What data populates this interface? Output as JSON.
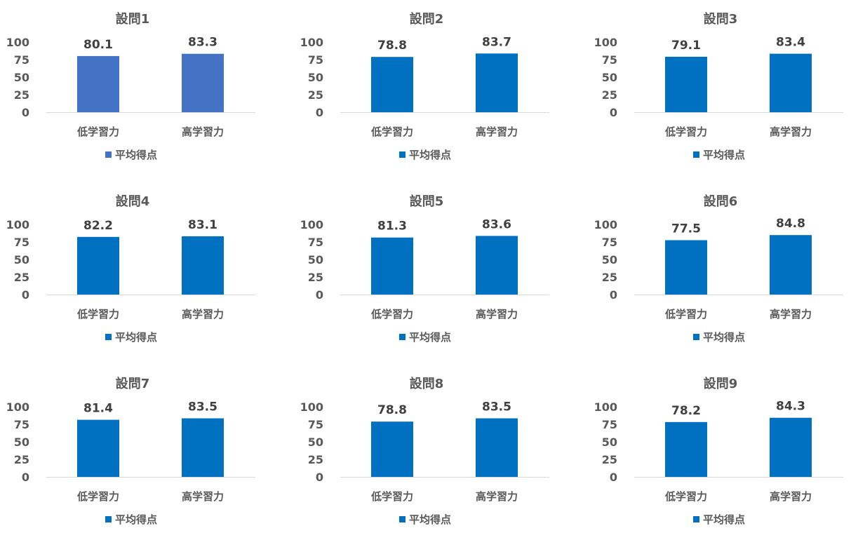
{
  "colors": {
    "first_chart_bar": "#4472C4",
    "bar": "#0070C0",
    "axis_line": "#D9D9D9",
    "text": "#595959",
    "data_label": "#404040"
  },
  "chart_data": [
    {
      "type": "bar",
      "title": "設問1",
      "categories": [
        "低学習力",
        "高学習力"
      ],
      "series": [
        {
          "name": "平均得点",
          "values": [
            80.1,
            83.3
          ]
        }
      ],
      "yticks": [
        "100",
        "75",
        "50",
        "25",
        "0"
      ],
      "ylim": [
        0,
        100
      ],
      "legend": "bottom",
      "data_labels": [
        "80.1",
        "83.3"
      ],
      "bar_color": "#4472C4"
    },
    {
      "type": "bar",
      "title": "設問2",
      "categories": [
        "低学習力",
        "高学習力"
      ],
      "series": [
        {
          "name": "平均得点",
          "values": [
            78.8,
            83.7
          ]
        }
      ],
      "yticks": [
        "100",
        "75",
        "50",
        "25",
        "0"
      ],
      "ylim": [
        0,
        100
      ],
      "legend": "bottom",
      "data_labels": [
        "78.8",
        "83.7"
      ],
      "bar_color": "#0070C0"
    },
    {
      "type": "bar",
      "title": "設問3",
      "categories": [
        "低学習力",
        "高学習力"
      ],
      "series": [
        {
          "name": "平均得点",
          "values": [
            79.1,
            83.4
          ]
        }
      ],
      "yticks": [
        "100",
        "75",
        "50",
        "25",
        "0"
      ],
      "ylim": [
        0,
        100
      ],
      "legend": "bottom",
      "data_labels": [
        "79.1",
        "83.4"
      ],
      "bar_color": "#0070C0"
    },
    {
      "type": "bar",
      "title": "設問4",
      "categories": [
        "低学習力",
        "高学習力"
      ],
      "series": [
        {
          "name": "平均得点",
          "values": [
            82.2,
            83.1
          ]
        }
      ],
      "yticks": [
        "100",
        "75",
        "50",
        "25",
        "0"
      ],
      "ylim": [
        0,
        100
      ],
      "legend": "bottom",
      "data_labels": [
        "82.2",
        "83.1"
      ],
      "bar_color": "#0070C0"
    },
    {
      "type": "bar",
      "title": "設問5",
      "categories": [
        "低学習力",
        "高学習力"
      ],
      "series": [
        {
          "name": "平均得点",
          "values": [
            81.3,
            83.6
          ]
        }
      ],
      "yticks": [
        "100",
        "75",
        "50",
        "25",
        "0"
      ],
      "ylim": [
        0,
        100
      ],
      "legend": "bottom",
      "data_labels": [
        "81.3",
        "83.6"
      ],
      "bar_color": "#0070C0"
    },
    {
      "type": "bar",
      "title": "設問6",
      "categories": [
        "低学習力",
        "高学習力"
      ],
      "series": [
        {
          "name": "平均得点",
          "values": [
            77.5,
            84.8
          ]
        }
      ],
      "yticks": [
        "100",
        "75",
        "50",
        "25",
        "0"
      ],
      "ylim": [
        0,
        100
      ],
      "legend": "bottom",
      "data_labels": [
        "77.5",
        "84.8"
      ],
      "bar_color": "#0070C0"
    },
    {
      "type": "bar",
      "title": "設問7",
      "categories": [
        "低学習力",
        "高学習力"
      ],
      "series": [
        {
          "name": "平均得点",
          "values": [
            81.4,
            83.5
          ]
        }
      ],
      "yticks": [
        "100",
        "75",
        "50",
        "25",
        "0"
      ],
      "ylim": [
        0,
        100
      ],
      "legend": "bottom",
      "data_labels": [
        "81.4",
        "83.5"
      ],
      "bar_color": "#0070C0"
    },
    {
      "type": "bar",
      "title": "設問8",
      "categories": [
        "低学習力",
        "高学習力"
      ],
      "series": [
        {
          "name": "平均得点",
          "values": [
            78.8,
            83.5
          ]
        }
      ],
      "yticks": [
        "100",
        "75",
        "50",
        "25",
        "0"
      ],
      "ylim": [
        0,
        100
      ],
      "legend": "bottom",
      "data_labels": [
        "78.8",
        "83.5"
      ],
      "bar_color": "#0070C0"
    },
    {
      "type": "bar",
      "title": "設問9",
      "categories": [
        "低学習力",
        "高学習力"
      ],
      "series": [
        {
          "name": "平均得点",
          "values": [
            78.2,
            84.3
          ]
        }
      ],
      "yticks": [
        "100",
        "75",
        "50",
        "25",
        "0"
      ],
      "ylim": [
        0,
        100
      ],
      "legend": "bottom",
      "data_labels": [
        "78.2",
        "84.3"
      ],
      "bar_color": "#0070C0"
    }
  ]
}
